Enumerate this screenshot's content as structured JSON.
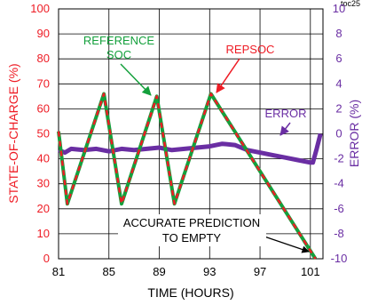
{
  "figure_code": "toc25",
  "chart_data": {
    "type": "line",
    "xlabel": "TIME (HOURS)",
    "ylabel": "STATE-OF-CHARGE (%)",
    "y2label": "ERROR (%)",
    "xlim": [
      81,
      102
    ],
    "ylim": [
      0,
      100
    ],
    "y2lim": [
      -10,
      10
    ],
    "x_ticks": [
      "81",
      "85",
      "89",
      "93",
      "97",
      "101"
    ],
    "x_tick_values": [
      81,
      85,
      89,
      93,
      97,
      101
    ],
    "y_ticks": [
      "0",
      "10",
      "20",
      "30",
      "40",
      "50",
      "60",
      "70",
      "80",
      "90",
      "100"
    ],
    "y2_ticks": [
      "-10",
      "-8",
      "-6",
      "-4",
      "-2",
      "0",
      "2",
      "4",
      "6",
      "8",
      "10"
    ],
    "grid": true,
    "series": [
      {
        "name": "REFERENCE SOC",
        "color": "#14a03c",
        "axis": "left",
        "x": [
          81,
          81.7,
          84.6,
          86.0,
          88.8,
          90.2,
          93.1,
          101.4
        ],
        "y": [
          51,
          22,
          66,
          22,
          65,
          22,
          66,
          0
        ]
      },
      {
        "name": "REPSOC",
        "color": "#ee1c25",
        "axis": "left",
        "x": [
          81,
          81.7,
          84.6,
          86.0,
          88.8,
          90.2,
          93.1,
          101.4
        ],
        "y": [
          51,
          22,
          66,
          22,
          65,
          22,
          66,
          0
        ]
      },
      {
        "name": "ERROR",
        "color": "#6a2ea3",
        "axis": "right",
        "x": [
          81,
          81.5,
          82,
          83,
          84,
          85,
          86,
          87,
          88,
          89,
          90,
          91,
          92,
          93,
          94,
          95,
          96,
          97,
          98,
          99,
          100,
          101,
          101.2,
          101.5,
          101.8
        ],
        "y": [
          -1.3,
          -1.5,
          -1.2,
          -1.3,
          -1.2,
          -1.4,
          -1.2,
          -1.3,
          -1.2,
          -1.1,
          -1.3,
          -1.2,
          -1.1,
          -1.0,
          -0.8,
          -0.9,
          -1.3,
          -1.5,
          -1.7,
          -1.9,
          -2.1,
          -2.3,
          -2.3,
          -1.2,
          0.0
        ]
      }
    ],
    "annotations": {
      "reference_soc_line1": "REFERENCE",
      "reference_soc_line2": "SOC",
      "repsoc": "REPSOC",
      "error": "ERROR",
      "empty_line1": "ACCURATE PREDICTION",
      "empty_line2": "TO EMPTY"
    }
  }
}
